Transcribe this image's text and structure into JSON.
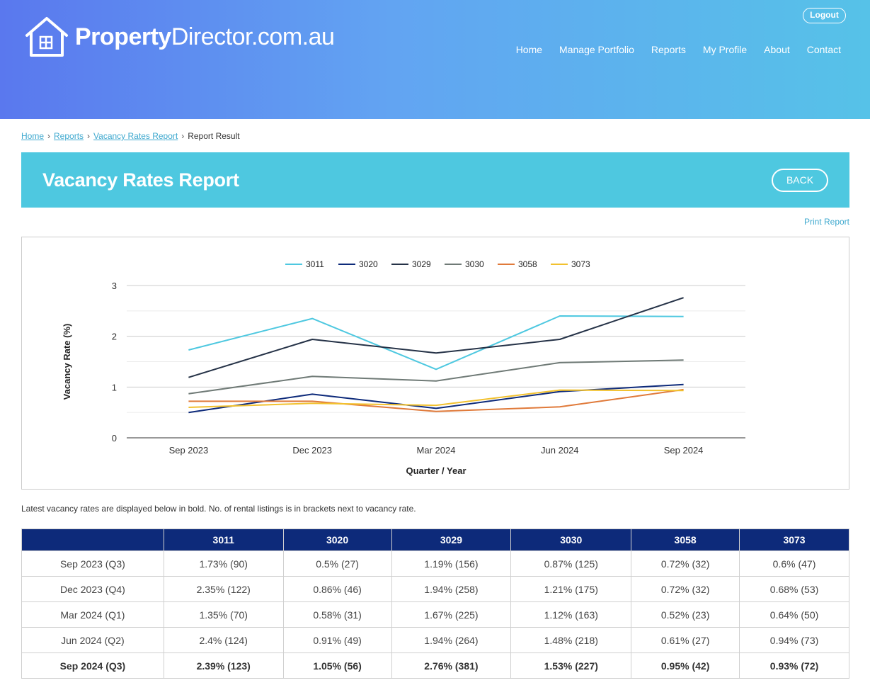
{
  "site": {
    "brand_bold": "Property",
    "brand_rest": "Director.com.au",
    "logout": "Logout"
  },
  "nav": [
    "Home",
    "Manage Portfolio",
    "Reports",
    "My Profile",
    "About",
    "Contact"
  ],
  "breadcrumb": {
    "home": "Home",
    "reports": "Reports",
    "vacancy": "Vacancy Rates Report",
    "current": "Report Result"
  },
  "title": "Vacancy Rates Report",
  "back_label": "BACK",
  "print_label": "Print Report",
  "note": "Latest vacancy rates are displayed below in bold. No. of rental listings is in brackets next to vacancy rate.",
  "chart_data": {
    "type": "line",
    "x": [
      "Sep 2023",
      "Dec 2023",
      "Mar 2024",
      "Jun 2024",
      "Sep 2024"
    ],
    "xlabel": "Quarter / Year",
    "ylabel": "Vacancy Rate (%)",
    "ylim": [
      0,
      3
    ],
    "yticks": [
      0,
      1,
      2,
      3
    ],
    "grid": true,
    "legend": "top",
    "series": [
      {
        "name": "3011",
        "color": "#4ec8e0",
        "values": [
          1.73,
          2.35,
          1.35,
          2.4,
          2.39
        ]
      },
      {
        "name": "3020",
        "color": "#0d2a7a",
        "values": [
          0.5,
          0.86,
          0.58,
          0.91,
          1.05
        ]
      },
      {
        "name": "3029",
        "color": "#253247",
        "values": [
          1.19,
          1.94,
          1.67,
          1.94,
          2.76
        ]
      },
      {
        "name": "3030",
        "color": "#6f7a76",
        "values": [
          0.87,
          1.21,
          1.12,
          1.48,
          1.53
        ]
      },
      {
        "name": "3058",
        "color": "#e07a3a",
        "values": [
          0.72,
          0.72,
          0.52,
          0.61,
          0.95
        ]
      },
      {
        "name": "3073",
        "color": "#f2c12e",
        "values": [
          0.6,
          0.68,
          0.64,
          0.94,
          0.93
        ]
      }
    ]
  },
  "table": {
    "headers": [
      "",
      "3011",
      "3020",
      "3029",
      "3030",
      "3058",
      "3073"
    ],
    "rows": [
      [
        "Sep 2023 (Q3)",
        "1.73% (90)",
        "0.5% (27)",
        "1.19% (156)",
        "0.87% (125)",
        "0.72% (32)",
        "0.6% (47)"
      ],
      [
        "Dec 2023 (Q4)",
        "2.35% (122)",
        "0.86% (46)",
        "1.94% (258)",
        "1.21% (175)",
        "0.72% (32)",
        "0.68% (53)"
      ],
      [
        "Mar 2024 (Q1)",
        "1.35% (70)",
        "0.58% (31)",
        "1.67% (225)",
        "1.12% (163)",
        "0.52% (23)",
        "0.64% (50)"
      ],
      [
        "Jun 2024 (Q2)",
        "2.4% (124)",
        "0.91% (49)",
        "1.94% (264)",
        "1.48% (218)",
        "0.61% (27)",
        "0.94% (73)"
      ],
      [
        "Sep 2024 (Q3)",
        "2.39% (123)",
        "1.05% (56)",
        "2.76% (381)",
        "1.53% (227)",
        "0.95% (42)",
        "0.93% (72)"
      ]
    ]
  }
}
